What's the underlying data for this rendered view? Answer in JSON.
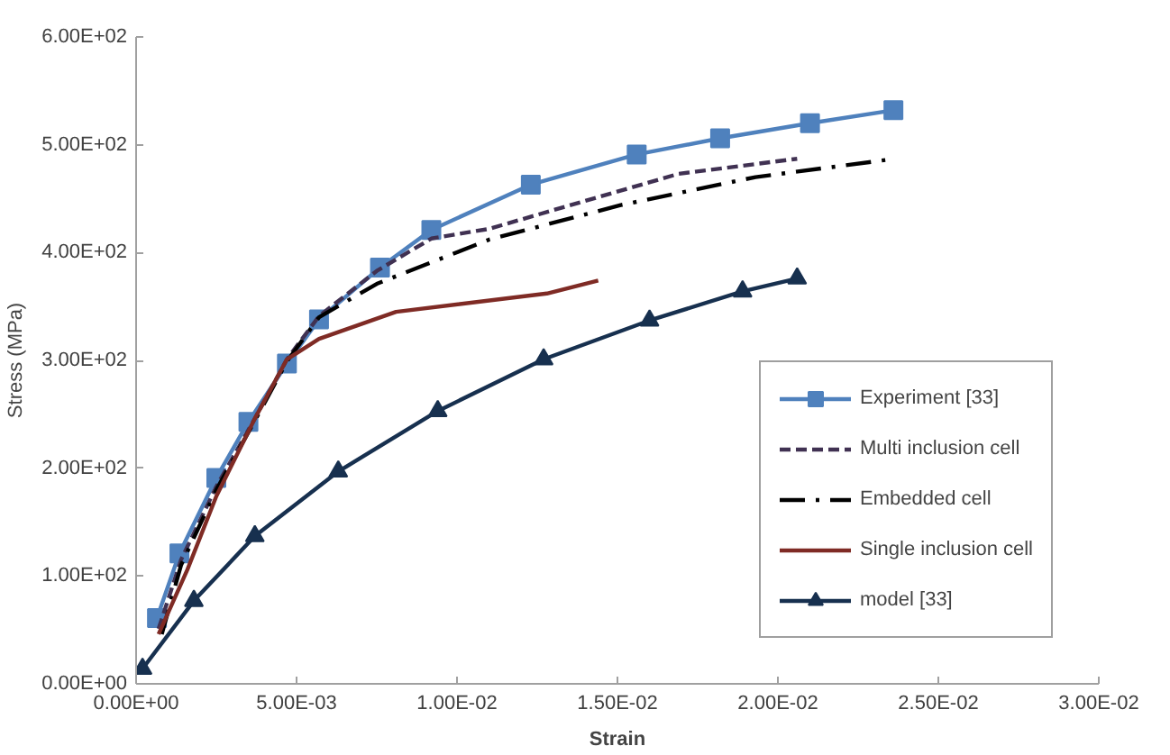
{
  "chart_data": {
    "type": "line",
    "xlabel": "Strain",
    "ylabel": "Stress (MPa)",
    "xlim": [
      0,
      0.03
    ],
    "ylim": [
      0,
      600
    ],
    "xticks": [
      {
        "value": 0,
        "label": "0.00E+00"
      },
      {
        "value": 0.005,
        "label": "5.00E-03"
      },
      {
        "value": 0.01,
        "label": "1.00E-02"
      },
      {
        "value": 0.015,
        "label": "1.50E-02"
      },
      {
        "value": 0.02,
        "label": "2.00E-02"
      },
      {
        "value": 0.025,
        "label": "2.50E-02"
      },
      {
        "value": 0.03,
        "label": "3.00E-02"
      }
    ],
    "yticks": [
      {
        "value": 0,
        "label": "0.00E+00"
      },
      {
        "value": 100,
        "label": "1.00E+02"
      },
      {
        "value": 200,
        "label": "2.00E+02"
      },
      {
        "value": 300,
        "label": "3.00E+02"
      },
      {
        "value": 400,
        "label": "4.00E+02"
      },
      {
        "value": 500,
        "label": "5.00E+02"
      },
      {
        "value": 600,
        "label": "6.00E+02"
      }
    ],
    "grid": false,
    "legend": "bottom right",
    "series": [
      {
        "name": "Experiment [33]",
        "color": "#4f81bd",
        "marker": "square",
        "line_style": "solid",
        "x": [
          0.00065,
          0.00135,
          0.0025,
          0.0035,
          0.0047,
          0.0057,
          0.0076,
          0.0092,
          0.0123,
          0.0156,
          0.0182,
          0.021,
          0.0236
        ],
        "values": [
          61,
          121,
          191,
          243,
          297,
          338,
          386,
          421,
          463,
          491,
          506,
          520,
          532
        ]
      },
      {
        "name": "Multi inclusion cell",
        "color": "#403152",
        "marker": "none",
        "line_style": "dashed",
        "x": [
          0.0007,
          0.0014,
          0.0025,
          0.0037,
          0.0047,
          0.0057,
          0.0075,
          0.0092,
          0.011,
          0.014,
          0.0169,
          0.0206
        ],
        "values": [
          51,
          115,
          183,
          246,
          301,
          341,
          383,
          413,
          422,
          448,
          473,
          487
        ]
      },
      {
        "name": "Embedded cell",
        "color": "#000000",
        "marker": "none",
        "line_style": "dashdot",
        "x": [
          0.0008,
          0.0014,
          0.0025,
          0.0037,
          0.0047,
          0.0057,
          0.0075,
          0.011,
          0.0151,
          0.0193,
          0.0234
        ],
        "values": [
          46,
          110,
          180,
          244,
          299,
          340,
          371,
          412,
          444,
          470,
          486
        ]
      },
      {
        "name": "Single inclusion cell",
        "color": "#7f2b25",
        "marker": "none",
        "line_style": "solid",
        "x": [
          0.0007,
          0.0016,
          0.0025,
          0.0037,
          0.0047,
          0.0057,
          0.0081,
          0.0128,
          0.0144
        ],
        "values": [
          46,
          106,
          174,
          246,
          301,
          320,
          345,
          362,
          374
        ]
      },
      {
        "name": "model [33]",
        "color": "#17304f",
        "marker": "triangle",
        "line_style": "solid",
        "x": [
          0.0002,
          0.0018,
          0.0037,
          0.0063,
          0.0094,
          0.0127,
          0.016,
          0.0189,
          0.0206
        ],
        "values": [
          14,
          77,
          137,
          197,
          253,
          301,
          337,
          364,
          376
        ]
      }
    ]
  }
}
